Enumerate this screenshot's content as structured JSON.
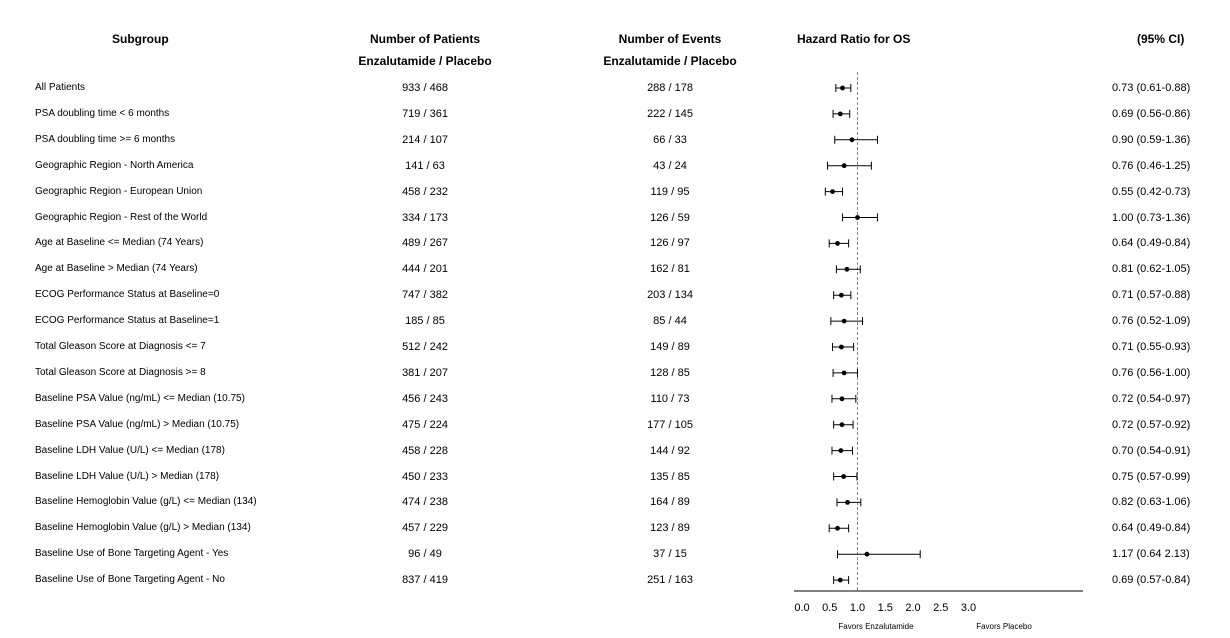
{
  "headers": {
    "subgroup": "Subgroup",
    "patients_line1": "Number of Patients",
    "patients_line2": "Enzalutamide / Placebo",
    "events_line1": "Number of Events",
    "events_line2": "Enzalutamide / Placebo",
    "hr": "Hazard Ratio for OS",
    "ci": "(95% CI)"
  },
  "rows": [
    {
      "subgroup": "All Patients",
      "patients": "933 / 468",
      "events": "288 / 178",
      "ci_text": "0.73 (0.61-0.88)"
    },
    {
      "subgroup": "PSA doubling time < 6 months",
      "patients": "719 / 361",
      "events": "222 / 145",
      "ci_text": "0.69 (0.56-0.86)"
    },
    {
      "subgroup": "PSA doubling time >= 6 months",
      "patients": "214 / 107",
      "events": "66 / 33",
      "ci_text": "0.90 (0.59-1.36)"
    },
    {
      "subgroup": "Geographic Region - North America",
      "patients": "141 / 63",
      "events": "43 / 24",
      "ci_text": "0.76 (0.46-1.25)"
    },
    {
      "subgroup": "Geographic Region - European Union",
      "patients": "458 / 232",
      "events": "119 / 95",
      "ci_text": "0.55 (0.42-0.73)"
    },
    {
      "subgroup": "Geographic Region - Rest of the World",
      "patients": "334 / 173",
      "events": "126 / 59",
      "ci_text": "1.00 (0.73-1.36)"
    },
    {
      "subgroup": "Age at Baseline <= Median (74 Years)",
      "patients": "489 / 267",
      "events": "126 / 97",
      "ci_text": "0.64 (0.49-0.84)"
    },
    {
      "subgroup": "Age at Baseline > Median (74 Years)",
      "patients": "444 / 201",
      "events": "162 / 81",
      "ci_text": "0.81 (0.62-1.05)"
    },
    {
      "subgroup": "ECOG Performance Status at Baseline=0",
      "patients": "747 / 382",
      "events": "203 / 134",
      "ci_text": "0.71 (0.57-0.88)"
    },
    {
      "subgroup": "ECOG Performance Status at Baseline=1",
      "patients": "185 / 85",
      "events": "85 / 44",
      "ci_text": "0.76 (0.52-1.09)"
    },
    {
      "subgroup": "Total Gleason Score at Diagnosis <= 7",
      "patients": "512 / 242",
      "events": "149 / 89",
      "ci_text": "0.71 (0.55-0.93)"
    },
    {
      "subgroup": "Total Gleason Score at Diagnosis >= 8",
      "patients": "381 / 207",
      "events": "128 / 85",
      "ci_text": "0.76 (0.56-1.00)"
    },
    {
      "subgroup": "Baseline PSA Value (ng/mL) <= Median (10.75)",
      "patients": "456 / 243",
      "events": "110 / 73",
      "ci_text": "0.72 (0.54-0.97)"
    },
    {
      "subgroup": "Baseline PSA Value (ng/mL) > Median (10.75)",
      "patients": "475 / 224",
      "events": "177 / 105",
      "ci_text": "0.72 (0.57-0.92)"
    },
    {
      "subgroup": "Baseline LDH Value (U/L) <= Median (178)",
      "patients": "458 / 228",
      "events": "144 / 92",
      "ci_text": "0.70 (0.54-0.91)"
    },
    {
      "subgroup": "Baseline LDH Value (U/L) > Median (178)",
      "patients": "450 / 233",
      "events": "135 / 85",
      "ci_text": "0.75 (0.57-0.99)"
    },
    {
      "subgroup": "Baseline Hemoglobin Value (g/L) <= Median (134)",
      "patients": "474 / 238",
      "events": "164 / 89",
      "ci_text": "0.82 (0.63-1.06)"
    },
    {
      "subgroup": "Baseline Hemoglobin Value (g/L) > Median (134)",
      "patients": "457 / 229",
      "events": "123 / 89",
      "ci_text": "0.64 (0.49-0.84)"
    },
    {
      "subgroup": "Baseline Use of Bone Targeting Agent - Yes",
      "patients": "96 / 49",
      "events": "37 / 15",
      "ci_text": "1.17 (0.64 2.13)"
    },
    {
      "subgroup": "Baseline Use of Bone Targeting Agent - No",
      "patients": "837 / 419",
      "events": "251 / 163",
      "ci_text": "0.69 (0.57-0.84)"
    }
  ],
  "chart_data": {
    "type": "forest",
    "title": "Hazard Ratio for OS",
    "xlim": [
      0.0,
      3.0
    ],
    "xticks": [
      "0.0",
      "0.5",
      "1.0",
      "1.5",
      "2.0",
      "2.5",
      "3.0"
    ],
    "reference_line": 1.0,
    "favors_left": "Favors Enzalutamide",
    "favors_right": "Favors Placebo",
    "categories": [
      "All Patients",
      "PSA doubling time < 6 months",
      "PSA doubling time >= 6 months",
      "Geographic Region - North America",
      "Geographic Region - European Union",
      "Geographic Region - Rest of the World",
      "Age at Baseline <= Median (74 Years)",
      "Age at Baseline > Median (74 Years)",
      "ECOG Performance Status at Baseline=0",
      "ECOG Performance Status at Baseline=1",
      "Total Gleason Score at Diagnosis <= 7",
      "Total Gleason Score at Diagnosis >= 8",
      "Baseline PSA Value (ng/mL) <= Median (10.75)",
      "Baseline PSA Value (ng/mL) > Median (10.75)",
      "Baseline LDH Value (U/L) <= Median (178)",
      "Baseline LDH Value (U/L) > Median (178)",
      "Baseline Hemoglobin Value (g/L) <= Median (134)",
      "Baseline Hemoglobin Value (g/L) > Median (134)",
      "Baseline Use of Bone Targeting Agent - Yes",
      "Baseline Use of Bone Targeting Agent - No"
    ],
    "hr": [
      0.73,
      0.69,
      0.9,
      0.76,
      0.55,
      1.0,
      0.64,
      0.81,
      0.71,
      0.76,
      0.71,
      0.76,
      0.72,
      0.72,
      0.7,
      0.75,
      0.82,
      0.64,
      1.17,
      0.69
    ],
    "lower": [
      0.61,
      0.56,
      0.59,
      0.46,
      0.42,
      0.73,
      0.49,
      0.62,
      0.57,
      0.52,
      0.55,
      0.56,
      0.54,
      0.57,
      0.54,
      0.57,
      0.63,
      0.49,
      0.64,
      0.57
    ],
    "upper": [
      0.88,
      0.86,
      1.36,
      1.25,
      0.73,
      1.36,
      0.84,
      1.05,
      0.88,
      1.09,
      0.93,
      1.0,
      0.97,
      0.92,
      0.91,
      0.99,
      1.06,
      0.84,
      2.13,
      0.84
    ]
  }
}
